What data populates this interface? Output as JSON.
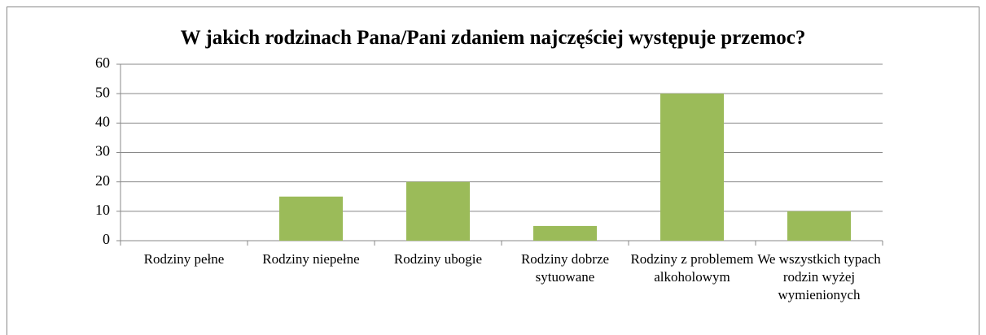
{
  "chart_data": {
    "type": "bar",
    "title": "W jakich rodzinach Pana/Pani zdaniem najczęściej występuje przemoc?",
    "categories": [
      "Rodziny pełne",
      "Rodziny niepełne",
      "Rodziny ubogie",
      "Rodziny dobrze sytuowane",
      "Rodziny z problemem alkoholowym",
      "We wszystkich typach rodzin wyżej wymienionych"
    ],
    "values": [
      0,
      15,
      20,
      5,
      50,
      10
    ],
    "color": "#9bbb59",
    "ylim": [
      0,
      60
    ],
    "yticks": [
      0,
      10,
      20,
      30,
      40,
      50,
      60
    ],
    "grid": true
  }
}
